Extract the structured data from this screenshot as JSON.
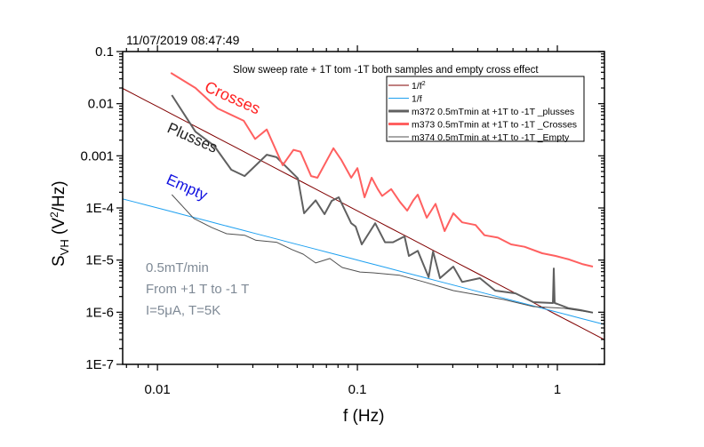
{
  "timestamp": "11/07/2019 08:47:49",
  "chart_data": {
    "type": "line",
    "title": "Slow sweep rate + 1T tom -1T  both samples and empty cross effect",
    "xlabel": "f (Hz)",
    "ylabel": {
      "main": "S",
      "sub": "VH",
      "rest": " (V",
      "sup": "2",
      "end": "/Hz)"
    },
    "x_scale": "log",
    "y_scale": "log",
    "xlim": [
      0.0067,
      1.72
    ],
    "ylim": [
      1e-07,
      0.1
    ],
    "x_ticks": [
      {
        "v": 0.01,
        "label": "0.01"
      },
      {
        "v": 0.1,
        "label": "0.1"
      },
      {
        "v": 1,
        "label": "1"
      }
    ],
    "y_ticks": [
      {
        "v": 0.1,
        "label": "0.1"
      },
      {
        "v": 0.01,
        "label": "0.01"
      },
      {
        "v": 0.001,
        "label": "0.001"
      },
      {
        "v": 0.0001,
        "label": "1E-4"
      },
      {
        "v": 1e-05,
        "label": "1E-5"
      },
      {
        "v": 1e-06,
        "label": "1E-6"
      },
      {
        "v": 1e-07,
        "label": "1E-7"
      }
    ],
    "grid": false,
    "legend_position": "top-right",
    "fits": [
      {
        "name": "1/f",
        "sup": "2",
        "color": "#800000",
        "amplitude": 8.8e-07,
        "exponent": 2
      },
      {
        "name": "1/f",
        "sup": "",
        "color": "#1ea0f0",
        "amplitude": 1e-06,
        "exponent": 1
      }
    ],
    "series": [
      {
        "name": "m372  0.5mTmin at +1T to -1T  _plusses",
        "color": "#606060",
        "width": 2,
        "f": [
          0.0118,
          0.0155,
          0.0192,
          0.0234,
          0.0273,
          0.0352,
          0.0394,
          0.0504,
          0.0541,
          0.0618,
          0.0685,
          0.0744,
          0.0807,
          0.0931,
          0.098,
          0.1052,
          0.1227,
          0.1374,
          0.1507,
          0.1721,
          0.181,
          0.2005,
          0.227,
          0.239,
          0.259,
          0.302,
          0.334,
          0.41,
          0.489,
          0.618,
          0.759,
          0.95,
          0.96,
          0.97,
          1.0,
          1.14,
          1.3,
          1.505
        ],
        "S": [
          0.0146,
          0.0029,
          0.00156,
          0.00054,
          0.00041,
          0.00105,
          0.00094,
          0.00037,
          7.9e-05,
          0.00014,
          7.6e-05,
          0.000137,
          0.00016,
          5.1e-05,
          4.4e-05,
          2e-05,
          5.1e-05,
          2.2e-05,
          2.2e-05,
          2.85e-05,
          1.2e-05,
          1.5e-05,
          4.7e-06,
          1.46e-05,
          4.5e-06,
          7.5e-06,
          3.8e-06,
          4.5e-06,
          2.6e-06,
          2.3e-06,
          1.56e-06,
          1.5e-06,
          6.9e-06,
          1.5e-06,
          1.44e-06,
          1.19e-06,
          1.1e-06,
          9.8e-07
        ]
      },
      {
        "name": "m373  0.5mTmin at +1T to -1T  _Crosses",
        "color": "#ff6060",
        "width": 2,
        "f": [
          0.01167,
          0.0155,
          0.02,
          0.027,
          0.0308,
          0.0352,
          0.0423,
          0.0479,
          0.0519,
          0.0587,
          0.0631,
          0.0759,
          0.0832,
          0.0931,
          0.1,
          0.1086,
          0.1178,
          0.1265,
          0.133,
          0.1476,
          0.1634,
          0.1774,
          0.1905,
          0.2005,
          0.2223,
          0.246,
          0.273,
          0.302,
          0.334,
          0.39,
          0.432,
          0.504,
          0.587,
          0.685,
          0.84,
          0.98,
          1.142,
          1.33,
          1.505
        ],
        "S": [
          0.039,
          0.02,
          0.0081,
          0.0047,
          0.0021,
          0.0032,
          0.00066,
          0.0013,
          0.0012,
          0.00041,
          0.00038,
          0.0014,
          0.00083,
          0.00038,
          0.00058,
          0.00016,
          0.00038,
          0.00023,
          0.00017,
          0.00023,
          0.00013,
          8.9e-05,
          0.00014,
          0.00018,
          6.5e-05,
          0.00012,
          3.6e-05,
          7.9e-05,
          5.3e-05,
          4.7e-05,
          3e-05,
          2.7e-05,
          2e-05,
          1.8e-05,
          1.35e-05,
          1.2e-05,
          1.03e-05,
          8.4e-06,
          7.5e-06
        ]
      },
      {
        "name": "m374  0.5mTmin at +1T to -1T  _Empty",
        "color": "#505050",
        "width": 1,
        "f": [
          0.0118,
          0.0152,
          0.0187,
          0.0222,
          0.0273,
          0.0311,
          0.0394,
          0.0469,
          0.0536,
          0.0618,
          0.0728,
          0.084,
          0.103,
          0.12,
          0.163,
          0.216,
          0.302,
          0.424,
          0.541,
          0.759,
          1.08,
          1.505
        ],
        "S": [
          0.00018,
          6.3e-05,
          4.2e-05,
          3.2e-05,
          3e-05,
          2.4e-05,
          2.2e-05,
          1.6e-05,
          1.3e-05,
          8.8e-06,
          1.07e-05,
          7.2e-06,
          5.9e-06,
          5.7e-06,
          5.1e-06,
          3.8e-06,
          2.6e-06,
          2.06e-06,
          1.75e-06,
          1.28e-06,
          1.19e-06,
          9.8e-07
        ]
      }
    ],
    "annotations": [
      {
        "text": "Crosses",
        "color": "#ff2020"
      },
      {
        "text": "Plusses",
        "color": "#202020"
      },
      {
        "text": "Empty",
        "color": "#1010e0"
      }
    ],
    "info_lines": [
      "0.5mT/min",
      "From +1 T  to -1 T",
      "I=5μA, T=5K"
    ],
    "info_color": "#7f8a96"
  }
}
